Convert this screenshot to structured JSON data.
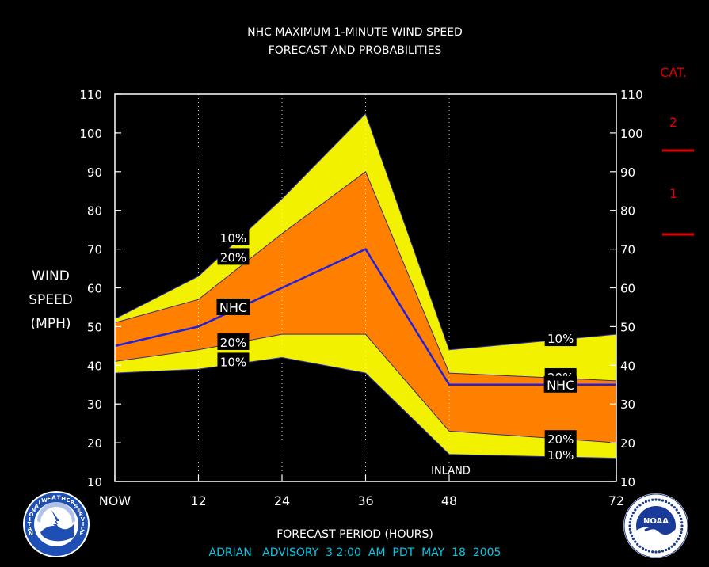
{
  "chart_data": {
    "type": "area",
    "title": "NHC MAXIMUM 1-MINUTE WIND SPEED",
    "subtitle": "FORECAST AND PROBABILITIES",
    "xlabel": "FORECAST PERIOD (HOURS)",
    "ylabel_lines": [
      "WIND",
      "SPEED",
      "(MPH)"
    ],
    "x": [
      0,
      12,
      24,
      36,
      48,
      72
    ],
    "xticks": [
      {
        "value": 0,
        "label": "NOW"
      },
      {
        "value": 12,
        "label": "12"
      },
      {
        "value": 24,
        "label": "24"
      },
      {
        "value": 36,
        "label": "36"
      },
      {
        "value": 48,
        "label": "48"
      },
      {
        "value": 72,
        "label": "72"
      }
    ],
    "xlim": [
      0,
      72
    ],
    "ylim": [
      10,
      110
    ],
    "yticks": [
      10,
      20,
      30,
      40,
      50,
      60,
      70,
      80,
      90,
      100,
      110
    ],
    "series": [
      {
        "name": "10%",
        "role": "upper-10",
        "values": [
          52,
          63,
          83,
          105,
          44,
          48
        ]
      },
      {
        "name": "20%",
        "role": "upper-20",
        "values": [
          51,
          57,
          74,
          90,
          38,
          36
        ]
      },
      {
        "name": "NHC",
        "role": "forecast",
        "values": [
          45,
          50,
          60,
          70,
          35,
          35
        ]
      },
      {
        "name": "20%",
        "role": "lower-20",
        "values": [
          41,
          44,
          48,
          48,
          23,
          20
        ]
      },
      {
        "name": "10%",
        "role": "lower-10",
        "values": [
          38,
          39,
          42,
          38,
          17,
          16
        ]
      }
    ],
    "curve_labels": [
      {
        "text": "10%",
        "x": 17,
        "y": 73
      },
      {
        "text": "20%",
        "x": 17,
        "y": 68
      },
      {
        "text": "NHC",
        "x": 17,
        "y": 55
      },
      {
        "text": "20%",
        "x": 17,
        "y": 46
      },
      {
        "text": "10%",
        "x": 17,
        "y": 41
      },
      {
        "text": "10%",
        "x": 64,
        "y": 47
      },
      {
        "text": "20%",
        "x": 64,
        "y": 37
      },
      {
        "text": "NHC",
        "x": 64,
        "y": 35
      },
      {
        "text": "20%",
        "x": 64,
        "y": 21
      },
      {
        "text": "10%",
        "x": 64,
        "y": 17
      }
    ],
    "annotations": [
      {
        "text": "INLAND",
        "x": 48,
        "y": 13
      }
    ],
    "category_legend": {
      "title": "CAT.",
      "items": [
        {
          "label": "2",
          "threshold_mph": 110
        },
        {
          "label": "1",
          "threshold_mph": 95
        },
        {
          "label": "",
          "threshold_mph": 74
        }
      ]
    },
    "grid": "dotted vertical at 12, 24, 36, 48",
    "colors": {
      "outer_band": "#f2f200",
      "inner_band": "#ff8000",
      "forecast_line": "#2020e0",
      "background": "#000000",
      "text": "#ffffff",
      "category": "#e00000",
      "footer": "#00c8e6"
    }
  },
  "footer": {
    "advisory": "ADRIAN   ADVISORY  3 2:00  AM  PDT  MAY  18  2005"
  },
  "logos": {
    "left": {
      "icon": "nws-logo",
      "text": "NATIONAL WEATHER SERVICE"
    },
    "right": {
      "icon": "noaa-logo",
      "text": "NOAA",
      "ring_text": "NATIONAL OCEANIC AND ATMOSPHERIC ADMINISTRATION · U.S. DEPARTMENT OF COMMERCE"
    }
  }
}
